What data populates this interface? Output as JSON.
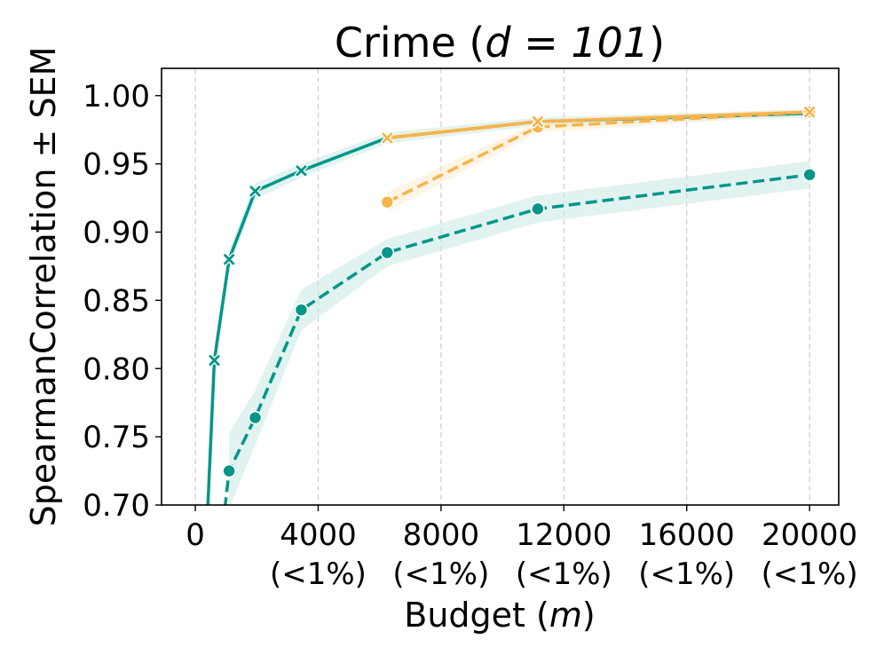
{
  "chart_data": {
    "type": "line",
    "title": "Crime (",
    "title_math": "d = 101",
    "title_close": ")",
    "xlabel": "Budget (",
    "xlabel_math": "m",
    "xlabel_close": ")",
    "ylabel": "SpearmanCorrelation ± SEM",
    "xlim": [
      -1100,
      20950
    ],
    "ylim": [
      0.7,
      1.02
    ],
    "grid": "vertical dashed",
    "x_ticks": [
      {
        "value": 0,
        "label": "0",
        "sublabel": ""
      },
      {
        "value": 4000,
        "label": "4000",
        "sublabel": "(<1%)"
      },
      {
        "value": 8000,
        "label": "8000",
        "sublabel": "(<1%)"
      },
      {
        "value": 12000,
        "label": "12000",
        "sublabel": "(<1%)"
      },
      {
        "value": 16000,
        "label": "16000",
        "sublabel": "(<1%)"
      },
      {
        "value": 20000,
        "label": "20000",
        "sublabel": "(<1%)"
      }
    ],
    "y_ticks": [
      {
        "value": 0.7,
        "label": "0.70"
      },
      {
        "value": 0.75,
        "label": "0.75"
      },
      {
        "value": 0.8,
        "label": "0.80"
      },
      {
        "value": 0.85,
        "label": "0.85"
      },
      {
        "value": 0.9,
        "label": "0.90"
      },
      {
        "value": 0.95,
        "label": "0.95"
      },
      {
        "value": 1.0,
        "label": "1.00"
      }
    ],
    "series": [
      {
        "color": "#009688",
        "band_color": "#c8e9e6",
        "linestyle": "dashed",
        "marker": "circle",
        "points": [
          {
            "x": 1100,
            "y": 0.725,
            "sem": 0.028
          },
          {
            "x": 1950,
            "y": 0.764,
            "sem": 0.02
          },
          {
            "x": 3450,
            "y": 0.843,
            "sem": 0.015
          },
          {
            "x": 6250,
            "y": 0.885,
            "sem": 0.01
          },
          {
            "x": 11150,
            "y": 0.917,
            "sem": 0.01
          },
          {
            "x": 20000,
            "y": 0.942,
            "sem": 0.01
          }
        ],
        "extend_below": {
          "x": 900,
          "y": 0.685
        }
      },
      {
        "color": "#009688",
        "band_color": "#c8e9e6",
        "linestyle": "solid",
        "marker": "x",
        "points": [
          {
            "x": 620,
            "y": 0.806,
            "sem": 0.01
          },
          {
            "x": 1100,
            "y": 0.88,
            "sem": 0.007
          },
          {
            "x": 1950,
            "y": 0.93,
            "sem": 0.006
          },
          {
            "x": 3450,
            "y": 0.945,
            "sem": 0.005
          },
          {
            "x": 6250,
            "y": 0.969,
            "sem": 0.004
          },
          {
            "x": 11150,
            "y": 0.981,
            "sem": 0.003
          },
          {
            "x": 20000,
            "y": 0.987,
            "sem": 0.003
          }
        ],
        "extend_below": {
          "x": 380,
          "y": 0.685
        }
      },
      {
        "color": "#f7b44a",
        "band_color": "#fdebcf",
        "linestyle": "dashed",
        "marker": "circle",
        "points": [
          {
            "x": 6250,
            "y": 0.922,
            "sem": 0.007
          },
          {
            "x": 11150,
            "y": 0.977,
            "sem": 0.004
          },
          {
            "x": 20000,
            "y": 0.988,
            "sem": 0.002
          }
        ]
      },
      {
        "color": "#f7b44a",
        "band_color": "#fdebcf",
        "linestyle": "solid",
        "marker": "x",
        "points": [
          {
            "x": 6250,
            "y": 0.969,
            "sem": 0.003
          },
          {
            "x": 11150,
            "y": 0.981,
            "sem": 0.002
          },
          {
            "x": 20000,
            "y": 0.988,
            "sem": 0.002
          }
        ]
      }
    ]
  }
}
